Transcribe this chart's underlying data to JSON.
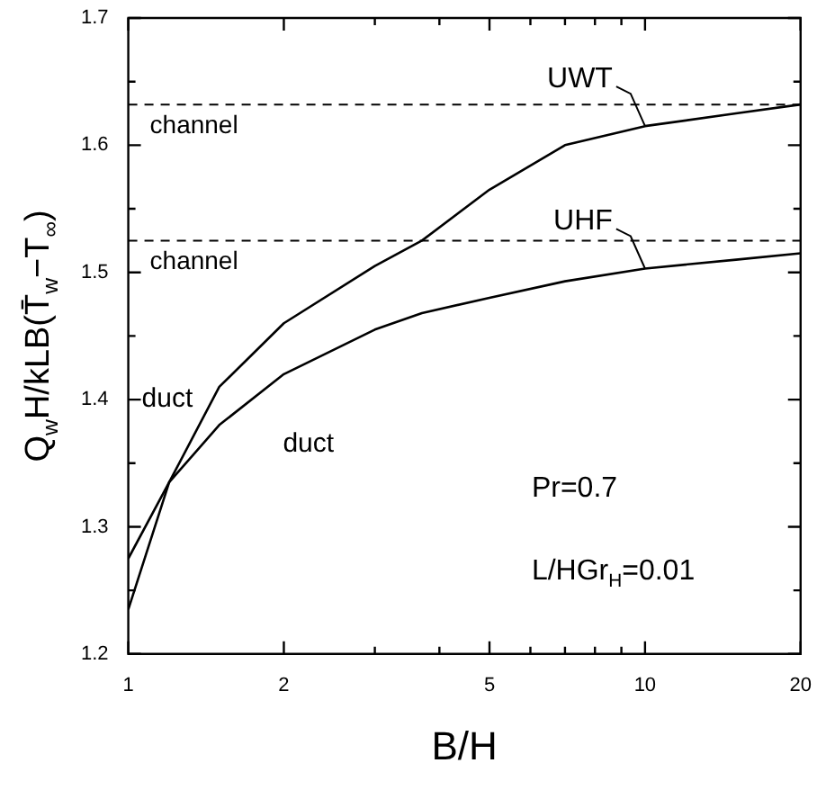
{
  "chart_data": {
    "type": "line",
    "xlabel": "B/H",
    "ylabel": "Q$_{w}$H/kLB(T̄$_{w}$−T$_{∞}$)",
    "log": "x",
    "x": [
      1,
      1.2,
      1.5,
      2,
      3,
      3.7,
      5,
      7,
      10,
      15,
      20
    ],
    "series": [
      {
        "name": "UWT",
        "color": "#000000",
        "values": [
          1.235,
          1.335,
          1.41,
          1.46,
          1.505,
          1.525,
          1.565,
          1.6,
          1.615,
          1.625,
          1.632
        ]
      },
      {
        "name": "UHF",
        "color": "#000000",
        "values": [
          1.275,
          1.335,
          1.38,
          1.42,
          1.455,
          1.468,
          1.48,
          1.493,
          1.503,
          1.51,
          1.515
        ]
      }
    ],
    "xlim": [
      1,
      20
    ],
    "xticks": [
      1,
      2,
      {
        "value": 3,
        "label": null
      },
      {
        "value": 4,
        "label": null
      },
      5,
      {
        "value": 6,
        "label": null
      },
      {
        "value": 7,
        "label": null
      },
      {
        "value": 8,
        "label": null
      },
      {
        "value": 9,
        "label": null
      },
      10,
      20
    ],
    "ylim": [
      1.2,
      1.7
    ],
    "yticks": [
      1.2,
      {
        "value": 1.25,
        "label": null
      },
      1.3,
      {
        "value": 1.35,
        "label": null
      },
      1.4,
      {
        "value": 1.45,
        "label": null
      },
      1.5,
      {
        "value": 1.55,
        "label": null
      },
      1.6,
      {
        "value": 1.65,
        "label": null
      },
      1.7
    ],
    "ref_lines": [
      {
        "axis": "y",
        "value": 1.632,
        "label": "channel",
        "line_style": "dashed",
        "color": "#000000"
      },
      {
        "axis": "y",
        "value": 1.525,
        "label": "channel",
        "line_style": "dashed",
        "color": "#000000"
      }
    ],
    "annotations": [
      "duct",
      "duct",
      "Pr=0.7",
      "L/HGr$_{H}$=0.01"
    ],
    "marker": "none",
    "line_style": "solid"
  }
}
